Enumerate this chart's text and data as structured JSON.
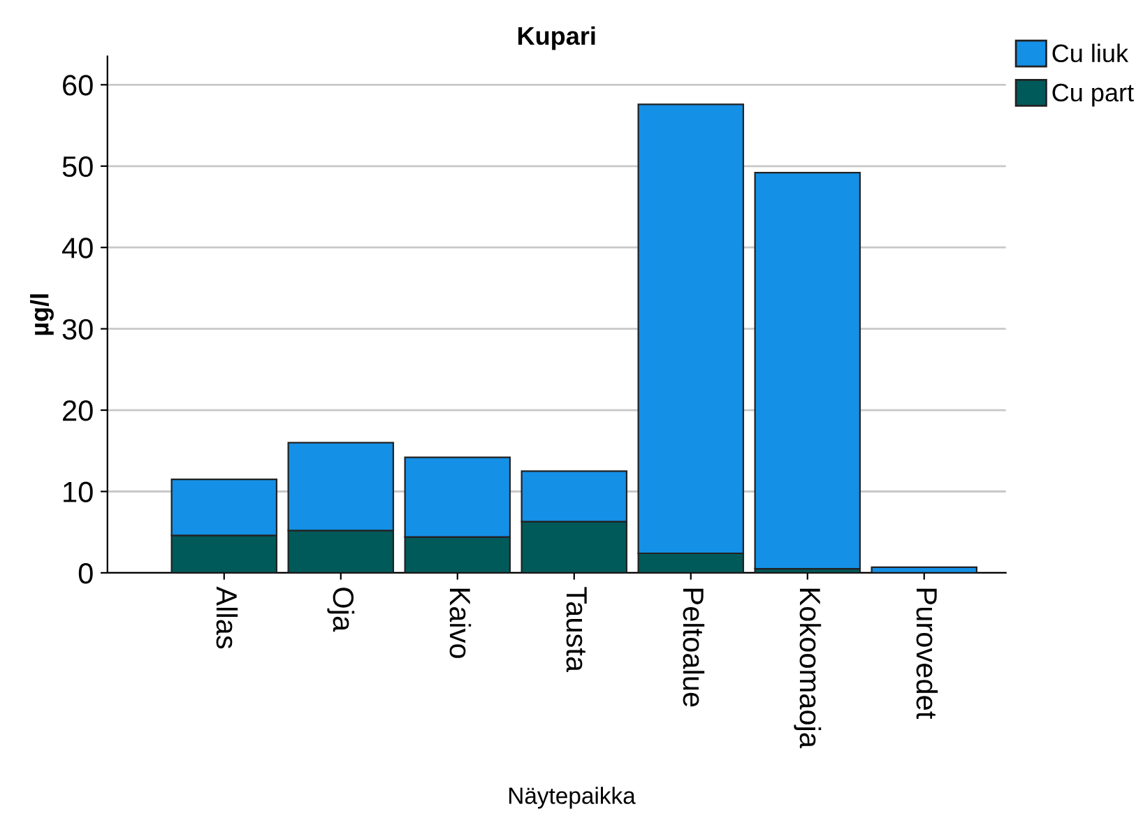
{
  "chart_data": {
    "type": "bar",
    "title": "Kupari",
    "xlabel": "Näytepaikka",
    "ylabel": "µg/l",
    "categories": [
      "Allas",
      "Oja",
      "Kaivo",
      "Tausta",
      "Peltoalue",
      "Kokoomaoja",
      "Purovedet"
    ],
    "stacked": true,
    "series": [
      {
        "name": "Cu part",
        "color": "#005a5a",
        "values": [
          4.6,
          5.2,
          4.4,
          6.3,
          2.4,
          0.5,
          0.0
        ]
      },
      {
        "name": "Cu liuk",
        "color": "#1490e6",
        "values": [
          6.9,
          10.8,
          9.8,
          6.2,
          55.2,
          48.7,
          0.7
        ]
      }
    ],
    "ylim": [
      0,
      63.5
    ],
    "yticks": [
      0,
      10,
      20,
      30,
      40,
      50,
      60
    ],
    "grid": "y",
    "legend": "top right"
  }
}
